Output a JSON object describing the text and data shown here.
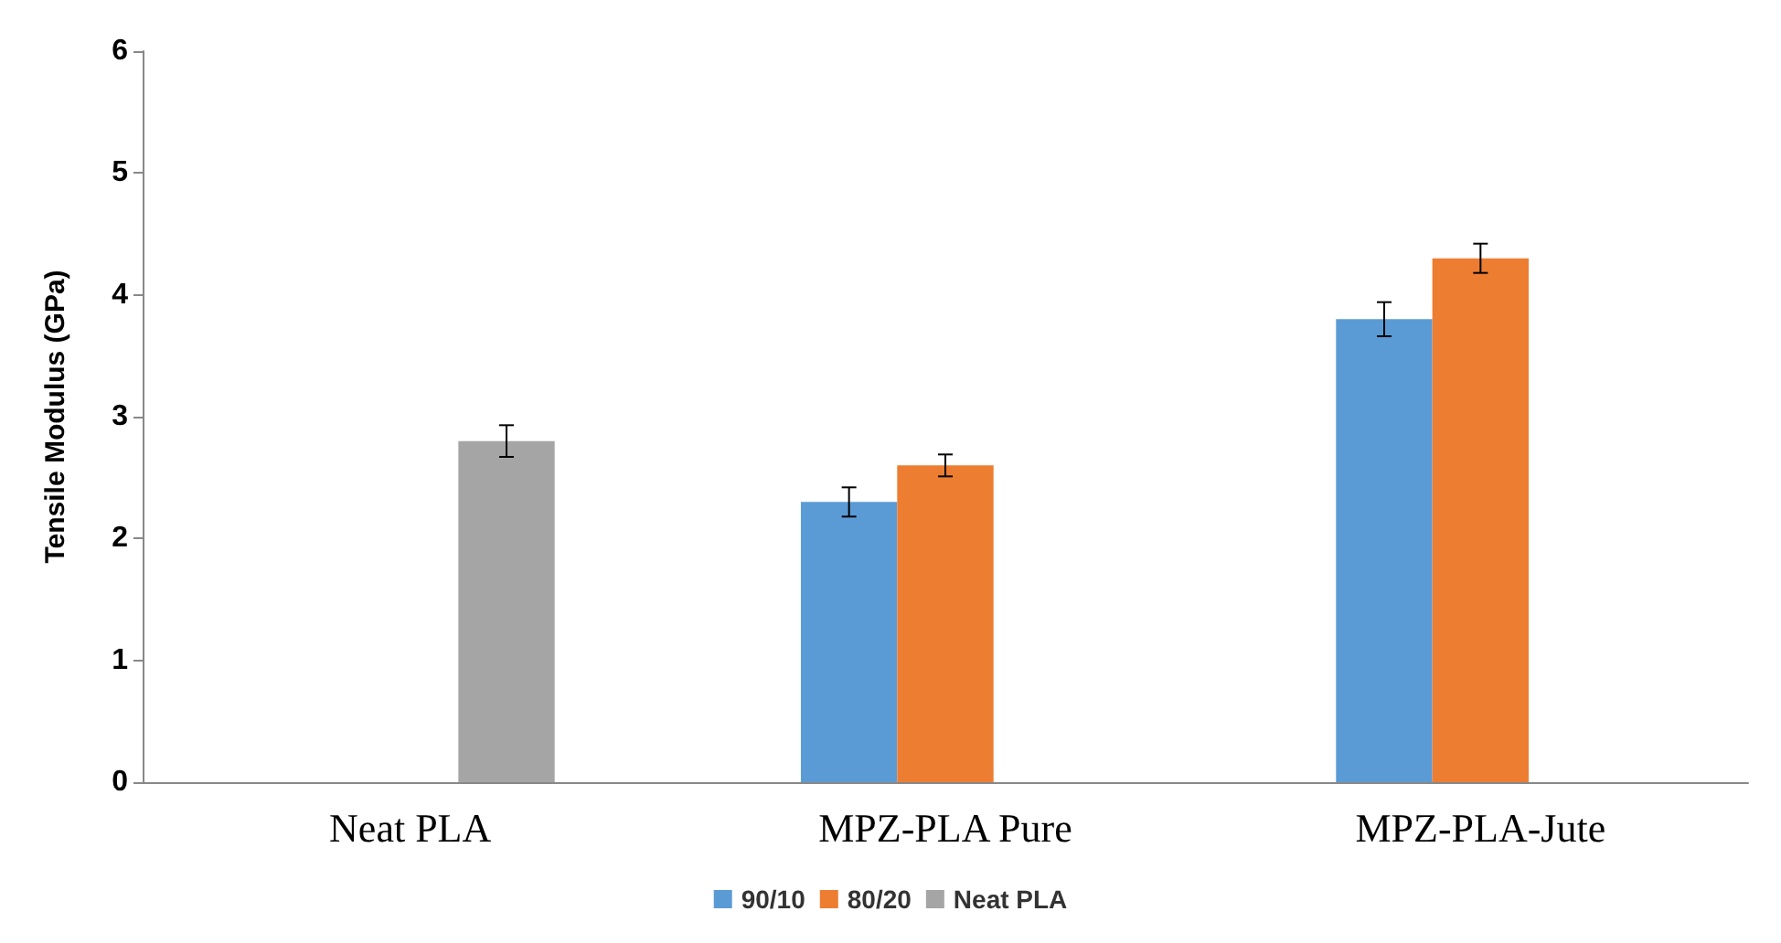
{
  "chart_data": {
    "type": "bar",
    "ylabel": "Tensile Modulus (GPa)",
    "categories": [
      "Neat PLA",
      "MPZ-PLA Pure",
      "MPZ-PLA-Jute"
    ],
    "series": [
      {
        "name": "90/10",
        "color": "#5b9bd5",
        "values": [
          null,
          2.3,
          3.8
        ],
        "errors": [
          null,
          0.12,
          0.14
        ]
      },
      {
        "name": "80/20",
        "color": "#ed7d31",
        "values": [
          null,
          2.6,
          4.3
        ],
        "errors": [
          null,
          0.09,
          0.12
        ]
      },
      {
        "name": "Neat PLA",
        "color": "#a5a5a5",
        "values": [
          2.8,
          null,
          null
        ],
        "errors": [
          0.13,
          null,
          null
        ]
      }
    ],
    "ylim": [
      0,
      6
    ],
    "yticks": [
      0,
      1,
      2,
      3,
      4,
      5,
      6
    ],
    "grid": false,
    "legend": "bottom"
  }
}
